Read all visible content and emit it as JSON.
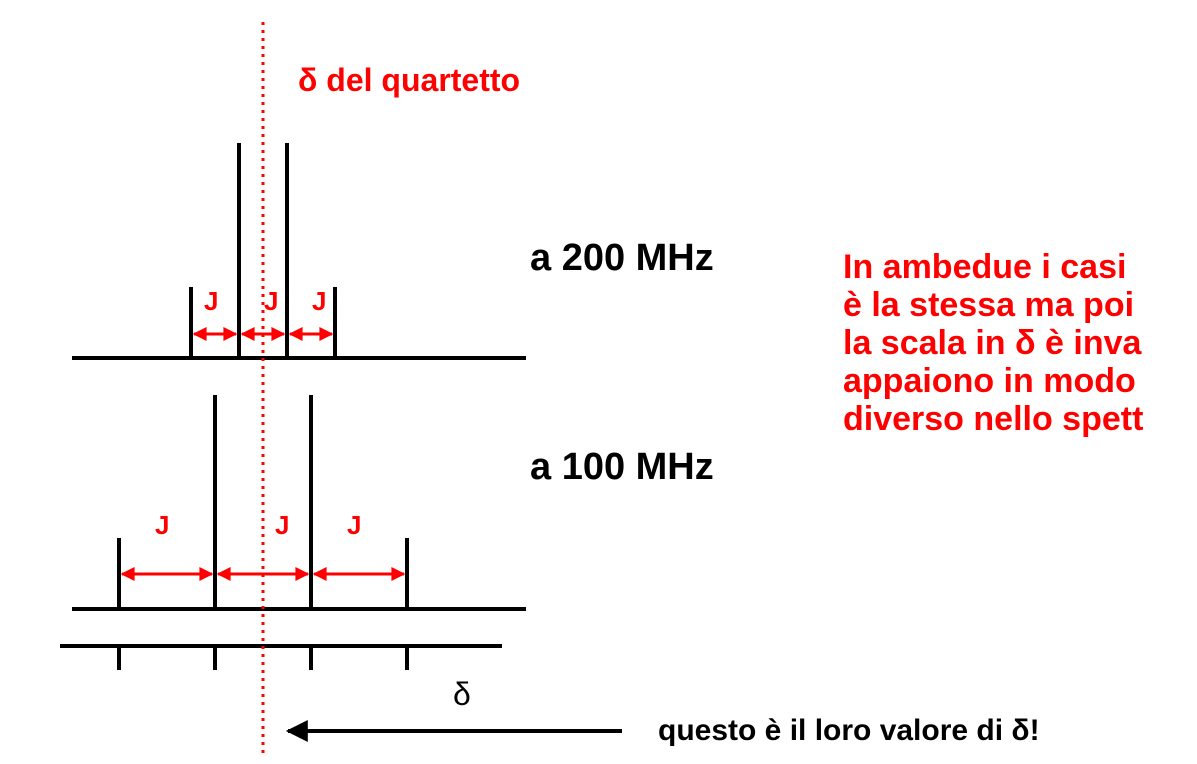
{
  "title_delta": "δ del quartetto",
  "label_200": "a 200 MHz",
  "label_100": "a 100 MHz",
  "j_label": "J",
  "axis_delta": "δ",
  "bottom_text": "questo è il loro valore di δ!",
  "note_lines": [
    "In ambedue i casi",
    "è la stessa ma poi",
    "la scala in  δ è inva",
    "appaiono in modo",
    "diverso nello spett"
  ],
  "colors": {
    "accent": "#ff0000",
    "ink": "#000000"
  }
}
